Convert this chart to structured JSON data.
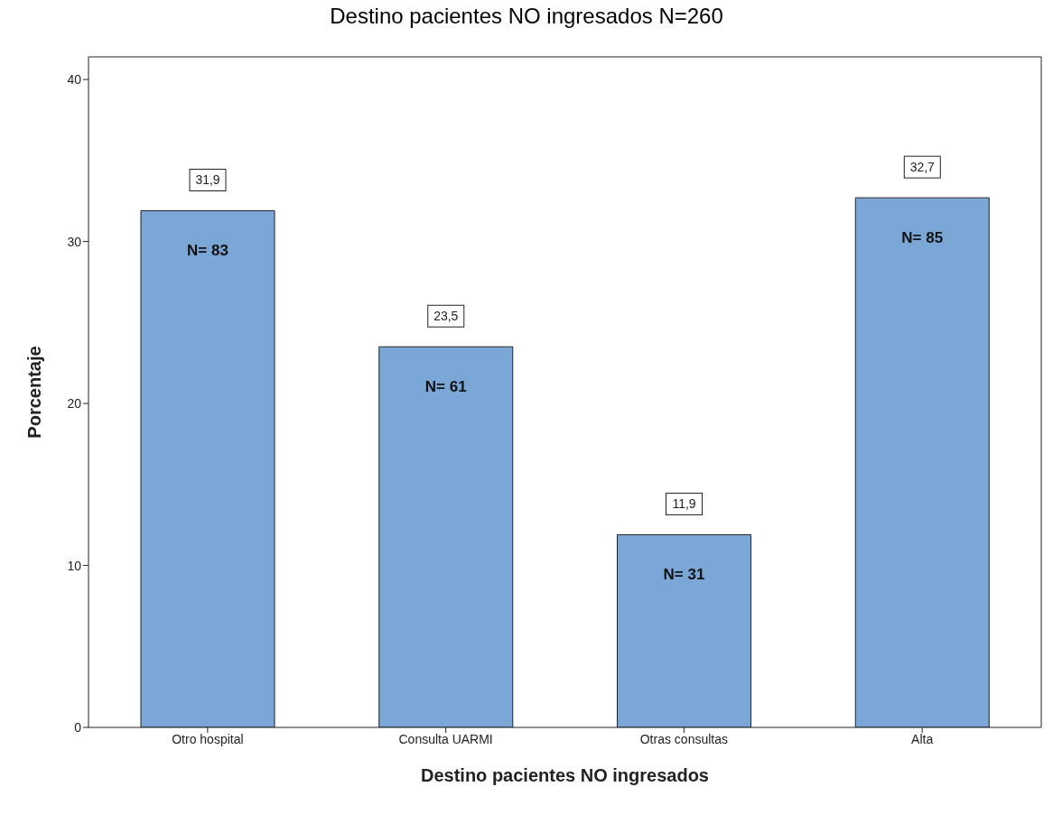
{
  "chart_data": {
    "type": "bar",
    "title": "Destino pacientes NO ingresados N=260",
    "xlabel": "Destino pacientes NO ingresados",
    "ylabel": "Porcentaje",
    "categories": [
      "Otro hospital",
      "Consulta UARMI",
      "Otras consultas",
      "Alta"
    ],
    "values": [
      31.9,
      23.5,
      11.9,
      32.7
    ],
    "value_labels": [
      "31,9",
      "23,5",
      "11,9",
      "32,7"
    ],
    "color": "#7ba7d6",
    "ylim": [
      0,
      41.4
    ],
    "yticks": [
      0,
      10,
      20,
      30,
      40
    ],
    "grid": false,
    "annotations": [
      {
        "text": "N= 83",
        "x": "Otro hospital",
        "y": 31.9
      },
      {
        "text": "N= 61",
        "x": "Consulta UARMI",
        "y": 23.5
      },
      {
        "text": "N= 31",
        "x": "Otras consultas",
        "y": 11.9
      },
      {
        "text": "N= 85",
        "x": "Alta",
        "y": 32.7
      }
    ]
  }
}
